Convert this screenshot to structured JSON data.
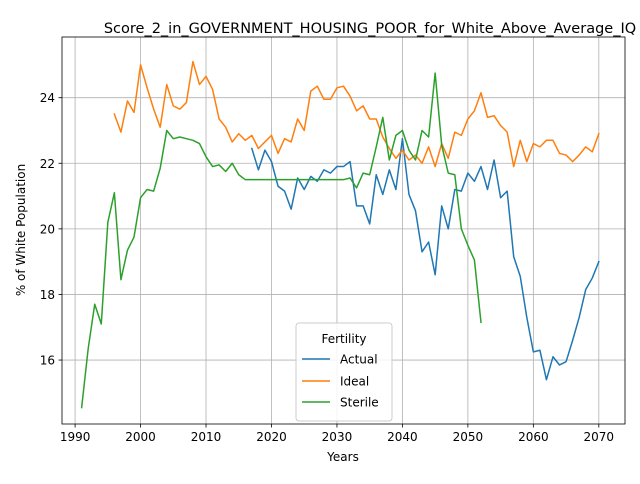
{
  "chart_data": {
    "type": "line",
    "title": "Score_2_in_GOVERNMENT_HOUSING_POOR_for_White_Above_Average_IQ",
    "xlabel": "Years",
    "ylabel": "% of White Population",
    "xlim": [
      1988,
      2074
    ],
    "ylim": [
      14.05,
      25.85
    ],
    "xticks": [
      1990,
      2000,
      2010,
      2020,
      2030,
      2040,
      2050,
      2060,
      2070
    ],
    "yticks": [
      16,
      18,
      20,
      22,
      24
    ],
    "grid": true,
    "legend": {
      "title": "Fertility",
      "position": "lower-center"
    },
    "series": [
      {
        "name": "Actual",
        "color": "#1f77b4",
        "x": [
          2017,
          2018,
          2019,
          2020,
          2021,
          2022,
          2023,
          2024,
          2025,
          2026,
          2027,
          2028,
          2029,
          2030,
          2031,
          2032,
          2033,
          2034,
          2035,
          2036,
          2037,
          2038,
          2039,
          2040,
          2041,
          2042,
          2043,
          2044,
          2045,
          2046,
          2047,
          2048,
          2049,
          2050,
          2051,
          2052,
          2053,
          2054,
          2055,
          2056,
          2057,
          2058,
          2059,
          2060,
          2061,
          2062,
          2063,
          2064,
          2065,
          2066,
          2067,
          2068,
          2069,
          2070
        ],
        "y": [
          22.45,
          21.8,
          22.4,
          22.05,
          21.3,
          21.15,
          20.6,
          21.55,
          21.2,
          21.6,
          21.45,
          21.8,
          21.7,
          21.9,
          21.9,
          22.05,
          20.7,
          20.7,
          20.15,
          21.65,
          21.05,
          21.8,
          21.2,
          22.75,
          21.05,
          20.55,
          19.3,
          19.6,
          18.6,
          20.7,
          20.0,
          21.2,
          21.15,
          21.7,
          21.45,
          21.9,
          21.2,
          22.1,
          20.95,
          21.15,
          19.15,
          18.55,
          17.3,
          16.25,
          16.3,
          15.4,
          16.1,
          15.85,
          15.95,
          16.6,
          17.3,
          18.15,
          18.5,
          19.0
        ]
      },
      {
        "name": "Ideal",
        "color": "#ff7f0e",
        "x": [
          1996,
          1997,
          1998,
          1999,
          2000,
          2001,
          2002,
          2003,
          2004,
          2005,
          2006,
          2007,
          2008,
          2009,
          2010,
          2011,
          2012,
          2013,
          2014,
          2015,
          2016,
          2017,
          2018,
          2019,
          2020,
          2021,
          2022,
          2023,
          2024,
          2025,
          2026,
          2027,
          2028,
          2029,
          2030,
          2031,
          2032,
          2033,
          2034,
          2035,
          2036,
          2037,
          2038,
          2039,
          2040,
          2041,
          2042,
          2043,
          2044,
          2045,
          2046,
          2047,
          2048,
          2049,
          2050,
          2051,
          2052,
          2053,
          2054,
          2055,
          2056,
          2057,
          2058,
          2059,
          2060,
          2061,
          2062,
          2063,
          2064,
          2065,
          2066,
          2067,
          2068,
          2069,
          2070
        ],
        "y": [
          23.5,
          22.95,
          23.9,
          23.55,
          25.0,
          24.3,
          23.65,
          23.1,
          24.4,
          23.75,
          23.65,
          23.85,
          25.1,
          24.4,
          24.65,
          24.25,
          23.35,
          23.1,
          22.65,
          22.9,
          22.7,
          22.85,
          22.45,
          22.65,
          22.85,
          22.3,
          22.75,
          22.65,
          23.35,
          23.0,
          24.2,
          24.35,
          23.95,
          23.95,
          24.3,
          24.35,
          24.05,
          23.6,
          23.75,
          23.35,
          23.35,
          22.8,
          22.45,
          22.15,
          22.4,
          22.1,
          22.25,
          22.0,
          22.5,
          21.9,
          22.6,
          22.15,
          22.95,
          22.85,
          23.35,
          23.6,
          24.15,
          23.4,
          23.45,
          23.15,
          22.95,
          21.9,
          22.7,
          22.05,
          22.6,
          22.5,
          22.7,
          22.7,
          22.3,
          22.25,
          22.05,
          22.25,
          22.5,
          22.35,
          22.9
        ]
      },
      {
        "name": "Sterile",
        "color": "#2ca02c",
        "x": [
          1991,
          1992,
          1993,
          1994,
          1995,
          1996,
          1997,
          1998,
          1999,
          2000,
          2001,
          2002,
          2003,
          2004,
          2005,
          2006,
          2007,
          2008,
          2009,
          2010,
          2011,
          2012,
          2013,
          2014,
          2015,
          2016,
          2017,
          2018,
          2019,
          2020,
          2021,
          2022,
          2023,
          2024,
          2025,
          2026,
          2027,
          2028,
          2029,
          2030,
          2031,
          2032,
          2033,
          2034,
          2035,
          2036,
          2037,
          2038,
          2039,
          2040,
          2041,
          2042,
          2043,
          2044,
          2045,
          2046,
          2047,
          2048,
          2049,
          2050,
          2051,
          2052
        ],
        "y": [
          14.55,
          16.35,
          17.7,
          17.1,
          20.2,
          21.1,
          18.45,
          19.35,
          19.75,
          20.95,
          21.2,
          21.15,
          21.85,
          23.0,
          22.75,
          22.8,
          22.75,
          22.7,
          22.6,
          22.2,
          21.9,
          21.95,
          21.75,
          22.0,
          21.65,
          21.5,
          21.5,
          21.5,
          21.5,
          21.5,
          21.5,
          21.5,
          21.5,
          21.5,
          21.5,
          21.5,
          21.5,
          21.5,
          21.5,
          21.5,
          21.5,
          21.55,
          21.25,
          21.7,
          21.65,
          22.5,
          23.4,
          22.1,
          22.85,
          23.0,
          22.4,
          22.1,
          23.0,
          22.8,
          24.75,
          22.55,
          21.7,
          21.65,
          20.0,
          19.5,
          19.05,
          17.15
        ]
      }
    ]
  }
}
